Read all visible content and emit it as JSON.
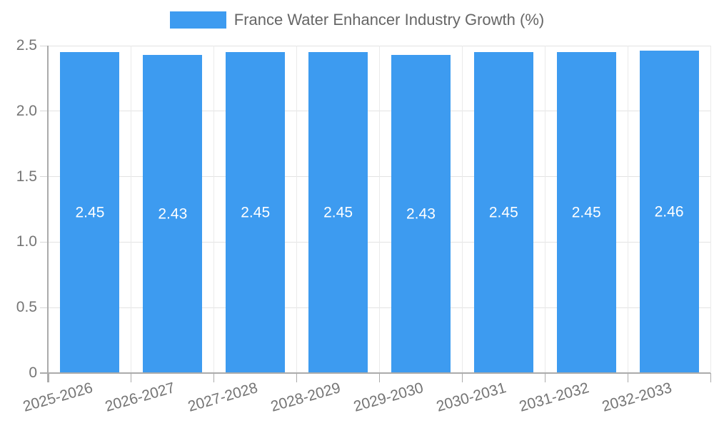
{
  "legend": {
    "label": "France Water Enhancer Industry Growth (%)"
  },
  "chart_data": {
    "type": "bar",
    "title": "France Water Enhancer Industry Growth (%)",
    "categories": [
      "2025-2026",
      "2026-2027",
      "2027-2028",
      "2028-2029",
      "2029-2030",
      "2030-2031",
      "2031-2032",
      "2032-2033"
    ],
    "values": [
      2.45,
      2.43,
      2.45,
      2.45,
      2.43,
      2.45,
      2.45,
      2.46
    ],
    "value_labels": [
      "2.45",
      "2.43",
      "2.45",
      "2.45",
      "2.43",
      "2.45",
      "2.45",
      "2.46"
    ],
    "y_ticks": [
      "0",
      "0.5",
      "1.0",
      "1.5",
      "2.0",
      "2.5"
    ],
    "ylim": [
      0,
      2.5
    ],
    "xlabel": "",
    "ylabel": "",
    "grid": true,
    "legend_position": "top",
    "colors": {
      "bar": "#3D9BF0",
      "gridline": "#E3E3E3",
      "tick": "#D6D6D6",
      "axis": "#ABABAB",
      "axis_text": "#757575",
      "legend_text": "#666666",
      "value_label": "#FFFFFF",
      "background": "#FFFFFF"
    }
  }
}
